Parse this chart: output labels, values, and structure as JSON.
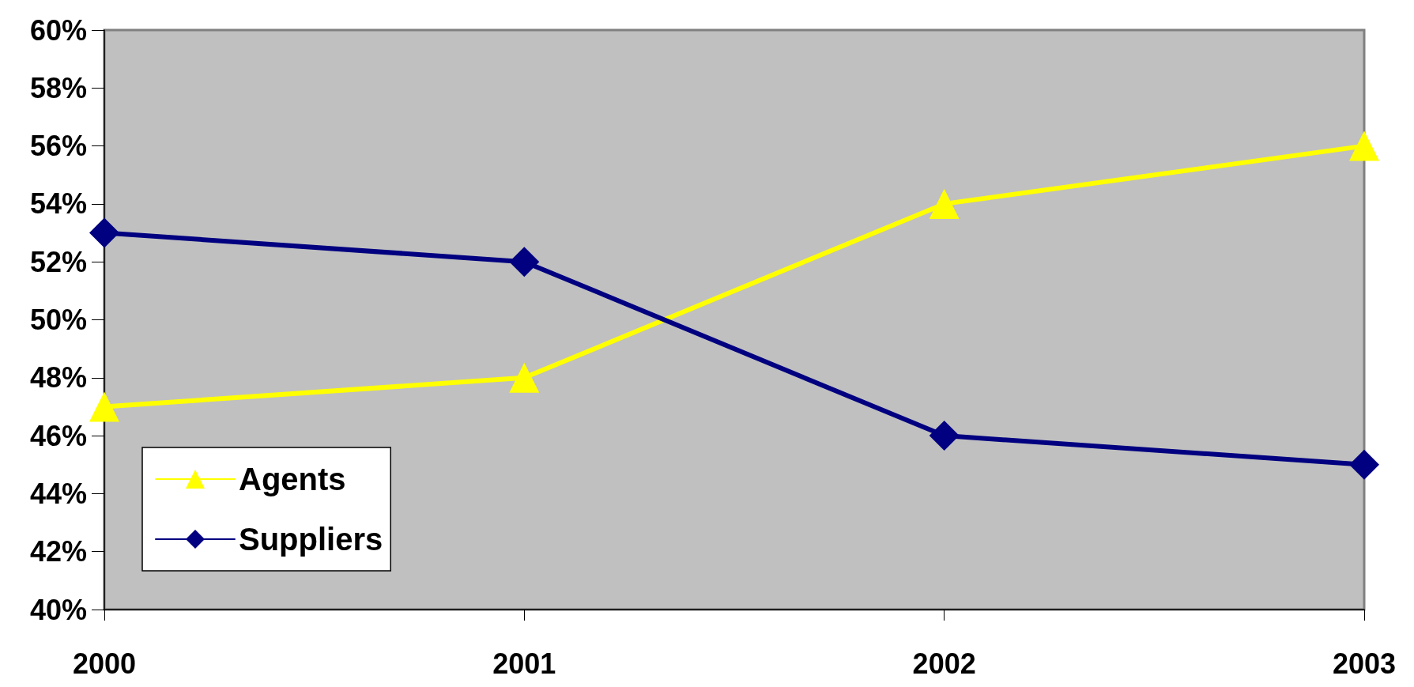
{
  "chart_data": {
    "type": "line",
    "categories": [
      "2000",
      "2001",
      "2002",
      "2003"
    ],
    "series": [
      {
        "name": "Agents",
        "color": "#ffff00",
        "marker": "triangle",
        "values": [
          47,
          48,
          54,
          56
        ]
      },
      {
        "name": "Suppliers",
        "color": "#000080",
        "marker": "diamond",
        "values": [
          53,
          52,
          46,
          45
        ]
      }
    ],
    "ylim": [
      40,
      60
    ],
    "yticks": [
      {
        "value": 40,
        "label": "40%"
      },
      {
        "value": 42,
        "label": "42%"
      },
      {
        "value": 44,
        "label": "44%"
      },
      {
        "value": 46,
        "label": "46%"
      },
      {
        "value": 48,
        "label": "48%"
      },
      {
        "value": 50,
        "label": "50%"
      },
      {
        "value": 52,
        "label": "52%"
      },
      {
        "value": 54,
        "label": "54%"
      },
      {
        "value": 56,
        "label": "56%"
      },
      {
        "value": 58,
        "label": "58%"
      },
      {
        "value": 60,
        "label": "60%"
      }
    ],
    "grid": false,
    "legend": "bottom left",
    "line_style": "solid"
  }
}
